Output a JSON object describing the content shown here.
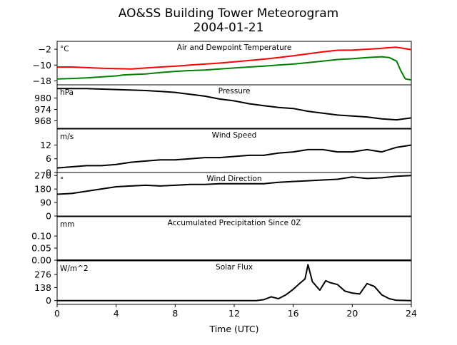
{
  "chart_data": {
    "type": "line",
    "title": "AO&SS Building Tower Meteorogram",
    "subtitle": "2004-01-21",
    "xlabel": "Time (UTC)",
    "x_ticks": [
      "0",
      "4",
      "8",
      "12",
      "16",
      "20",
      "24"
    ],
    "xlim": [
      0,
      24
    ],
    "panels": [
      {
        "key": "temp",
        "title": "Air and Dewpoint Temperature",
        "unit": "°C",
        "ylim": [
          -20,
          2
        ],
        "y_ticks": [
          -2,
          -10,
          -18
        ],
        "y_tick_labels": [
          "−2",
          "−10",
          "−18"
        ],
        "series": [
          {
            "color": "#ff0000",
            "x": [
              0,
              1,
              2,
              3,
              4,
              5,
              6,
              7,
              8,
              9,
              10,
              11,
              12,
              13,
              14,
              15,
              16,
              17,
              18,
              19,
              20,
              21,
              22,
              22.5,
              23,
              23.5,
              24
            ],
            "y": [
              -11,
              -11,
              -11.3,
              -11.6,
              -11.8,
              -12,
              -11.5,
              -11,
              -10.6,
              -10,
              -9.5,
              -9,
              -8.4,
              -7.7,
              -7,
              -6.2,
              -5.3,
              -4.3,
              -3.3,
              -2.5,
              -2.4,
              -2,
              -1.5,
              -1.2,
              -1.0,
              -1.6,
              -2.2
            ]
          },
          {
            "color": "#008000",
            "x": [
              0,
              1,
              2,
              3,
              4,
              4.5,
              5,
              6,
              7,
              8,
              9,
              10,
              11,
              12,
              13,
              14,
              15,
              16,
              17,
              18,
              19,
              20,
              21,
              22,
              22.5,
              23,
              23.3,
              23.6,
              24
            ],
            "y": [
              -17,
              -16.8,
              -16.5,
              -16,
              -15.5,
              -15,
              -14.8,
              -14.5,
              -13.8,
              -13.2,
              -12.8,
              -12.5,
              -12,
              -11.5,
              -11,
              -10.5,
              -10,
              -9.5,
              -8.8,
              -8,
              -7.2,
              -6.8,
              -6.2,
              -5.8,
              -6.2,
              -8,
              -13,
              -17,
              -17.5
            ]
          }
        ]
      },
      {
        "key": "pressure",
        "title": "Pressure",
        "unit": "hPa",
        "ylim": [
          964,
          987
        ],
        "y_ticks": [
          980,
          974,
          968
        ],
        "series": [
          {
            "color": "#000000",
            "x": [
              0,
              2,
              4,
              6,
              7,
              8,
              9,
              10,
              11,
              12,
              13,
              14,
              15,
              16,
              17,
              18,
              19,
              20,
              21,
              22,
              23,
              24
            ],
            "y": [
              985,
              985,
              984.5,
              984,
              983.5,
              983,
              982,
              981,
              979.5,
              978.5,
              977,
              976,
              975,
              974.5,
              973,
              972,
              971,
              970.5,
              970,
              969,
              968.5,
              969.5
            ]
          }
        ]
      },
      {
        "key": "speed",
        "title": "Wind Speed",
        "unit": "m/s",
        "ylim": [
          0,
          19
        ],
        "y_ticks": [
          12,
          6,
          0
        ],
        "series": [
          {
            "color": "#000000",
            "x": [
              0,
              1,
              2,
              3,
              4,
              5,
              6,
              7,
              8,
              9,
              10,
              11,
              12,
              13,
              14,
              15,
              16,
              17,
              18,
              19,
              20,
              21,
              22,
              23,
              24
            ],
            "y": [
              2,
              2.5,
              3,
              3,
              3.5,
              4.5,
              5,
              5.5,
              5.5,
              6,
              6.5,
              6.5,
              7,
              7.5,
              7.5,
              8.5,
              9,
              10,
              10,
              9,
              9,
              10,
              9,
              11,
              12
            ]
          }
        ]
      },
      {
        "key": "direction",
        "title": "Wind Direction",
        "unit": "°",
        "ylim": [
          0,
          290
        ],
        "y_ticks": [
          270,
          180,
          90,
          0
        ],
        "series": [
          {
            "color": "#000000",
            "x": [
              0,
              1,
              2,
              3,
              4,
              5,
              6,
              7,
              8,
              9,
              10,
              11,
              12,
              13,
              14,
              15,
              16,
              17,
              18,
              19,
              20,
              21,
              22,
              23,
              24
            ],
            "y": [
              145,
              150,
              165,
              180,
              195,
              200,
              205,
              200,
              205,
              210,
              210,
              215,
              215,
              215,
              215,
              225,
              230,
              235,
              240,
              245,
              260,
              250,
              255,
              265,
              270
            ]
          }
        ]
      },
      {
        "key": "precip",
        "title": "Accumulated Precipitation Since 0Z",
        "unit": "mm",
        "ylim": [
          0,
          0.18
        ],
        "y_ticks": [
          0.1,
          0.05,
          0.0
        ],
        "y_tick_labels": [
          "0.10",
          "0.05",
          "0.00"
        ],
        "series": [
          {
            "color": "#000000",
            "x": [
              0,
              24
            ],
            "y": [
              0,
              0
            ]
          }
        ]
      },
      {
        "key": "solar",
        "title": "Solar Flux",
        "unit": "W/m^2",
        "ylim": [
          -40,
          420
        ],
        "y_ticks": [
          276,
          138,
          0
        ],
        "series": [
          {
            "color": "#000000",
            "x": [
              0,
              13.5,
              14,
              14.5,
              15,
              15.5,
              16,
              16.5,
              16.8,
              17,
              17.3,
              17.8,
              18.2,
              18.5,
              19,
              19.5,
              20,
              20.5,
              21,
              21.5,
              22,
              22.5,
              23,
              24
            ],
            "y": [
              0,
              0,
              10,
              40,
              20,
              60,
              120,
              190,
              230,
              380,
              200,
              110,
              210,
              190,
              170,
              100,
              80,
              70,
              180,
              150,
              60,
              20,
              3,
              0
            ]
          }
        ]
      }
    ]
  }
}
